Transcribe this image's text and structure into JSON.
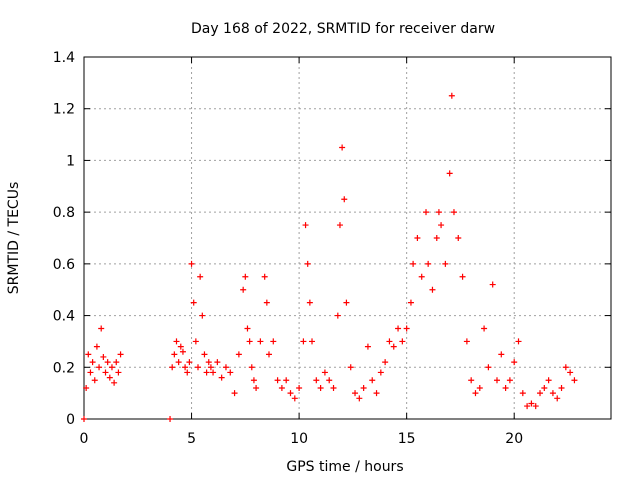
{
  "chart_data": {
    "type": "scatter",
    "title": "Day 168 of 2022, SRMTID for receiver darw",
    "xlabel": "GPS time / hours",
    "ylabel": "SRMTID / TECUs",
    "xlim": [
      0,
      24.5
    ],
    "ylim": [
      0,
      1.4
    ],
    "xticks": [
      0,
      5,
      10,
      15,
      20
    ],
    "xtick_labels": [
      "0",
      "5",
      "10",
      "15",
      "20"
    ],
    "yticks": [
      0,
      0.2,
      0.4,
      0.6,
      0.8,
      1.0,
      1.2,
      1.4
    ],
    "ytick_labels": [
      "0",
      "0.2",
      "0.4",
      "0.6",
      "0.8",
      "1",
      "1.2",
      "1.4"
    ],
    "grid": true,
    "marker": "+",
    "color": "#ff0000",
    "series": [
      {
        "name": "SRMTID",
        "x": [
          0.0,
          0.1,
          0.2,
          0.3,
          0.4,
          0.5,
          0.6,
          0.7,
          0.8,
          0.9,
          1.0,
          1.1,
          1.2,
          1.3,
          1.4,
          1.5,
          1.6,
          1.7,
          4.0,
          4.1,
          4.2,
          4.3,
          4.4,
          4.5,
          4.6,
          4.7,
          4.8,
          4.9,
          5.0,
          5.1,
          5.2,
          5.3,
          5.4,
          5.5,
          5.6,
          5.7,
          5.8,
          5.9,
          6.0,
          6.2,
          6.4,
          6.6,
          6.8,
          7.0,
          7.2,
          7.4,
          7.5,
          7.6,
          7.7,
          7.8,
          7.9,
          8.0,
          8.2,
          8.4,
          8.5,
          8.6,
          8.8,
          9.0,
          9.2,
          9.4,
          9.6,
          9.8,
          10.0,
          10.2,
          10.3,
          10.4,
          10.5,
          10.6,
          10.8,
          11.0,
          11.2,
          11.4,
          11.6,
          11.8,
          11.9,
          12.0,
          12.1,
          12.2,
          12.4,
          12.6,
          12.8,
          13.0,
          13.2,
          13.4,
          13.6,
          13.8,
          14.0,
          14.2,
          14.4,
          14.6,
          14.8,
          15.0,
          15.2,
          15.3,
          15.5,
          15.7,
          15.9,
          16.0,
          16.2,
          16.4,
          16.5,
          16.6,
          16.8,
          17.0,
          17.1,
          17.2,
          17.4,
          17.6,
          17.8,
          18.0,
          18.2,
          18.4,
          18.6,
          18.8,
          19.0,
          19.2,
          19.4,
          19.6,
          19.8,
          20.0,
          20.2,
          20.4,
          20.6,
          20.8,
          21.0,
          21.2,
          21.4,
          21.6,
          21.8,
          22.0,
          22.2,
          22.4,
          22.6,
          22.8
        ],
        "y": [
          0.0,
          0.12,
          0.25,
          0.18,
          0.22,
          0.15,
          0.28,
          0.2,
          0.35,
          0.24,
          0.18,
          0.22,
          0.16,
          0.2,
          0.14,
          0.22,
          0.18,
          0.25,
          0.0,
          0.2,
          0.25,
          0.3,
          0.22,
          0.28,
          0.26,
          0.2,
          0.18,
          0.22,
          0.6,
          0.45,
          0.3,
          0.2,
          0.55,
          0.4,
          0.25,
          0.18,
          0.22,
          0.2,
          0.18,
          0.22,
          0.16,
          0.2,
          0.18,
          0.1,
          0.25,
          0.5,
          0.55,
          0.35,
          0.3,
          0.2,
          0.15,
          0.12,
          0.3,
          0.55,
          0.45,
          0.25,
          0.3,
          0.15,
          0.12,
          0.15,
          0.1,
          0.08,
          0.12,
          0.3,
          0.75,
          0.6,
          0.45,
          0.3,
          0.15,
          0.12,
          0.18,
          0.15,
          0.12,
          0.4,
          0.75,
          1.05,
          0.85,
          0.45,
          0.2,
          0.1,
          0.08,
          0.12,
          0.28,
          0.15,
          0.1,
          0.18,
          0.22,
          0.3,
          0.28,
          0.35,
          0.3,
          0.35,
          0.45,
          0.6,
          0.7,
          0.55,
          0.8,
          0.6,
          0.5,
          0.7,
          0.8,
          0.75,
          0.6,
          0.95,
          1.25,
          0.8,
          0.7,
          0.55,
          0.3,
          0.15,
          0.1,
          0.12,
          0.35,
          0.2,
          0.52,
          0.15,
          0.25,
          0.12,
          0.15,
          0.22,
          0.3,
          0.1,
          0.05,
          0.06,
          0.05,
          0.1,
          0.12,
          0.15,
          0.1,
          0.08,
          0.12,
          0.2,
          0.18,
          0.15
        ]
      }
    ]
  }
}
